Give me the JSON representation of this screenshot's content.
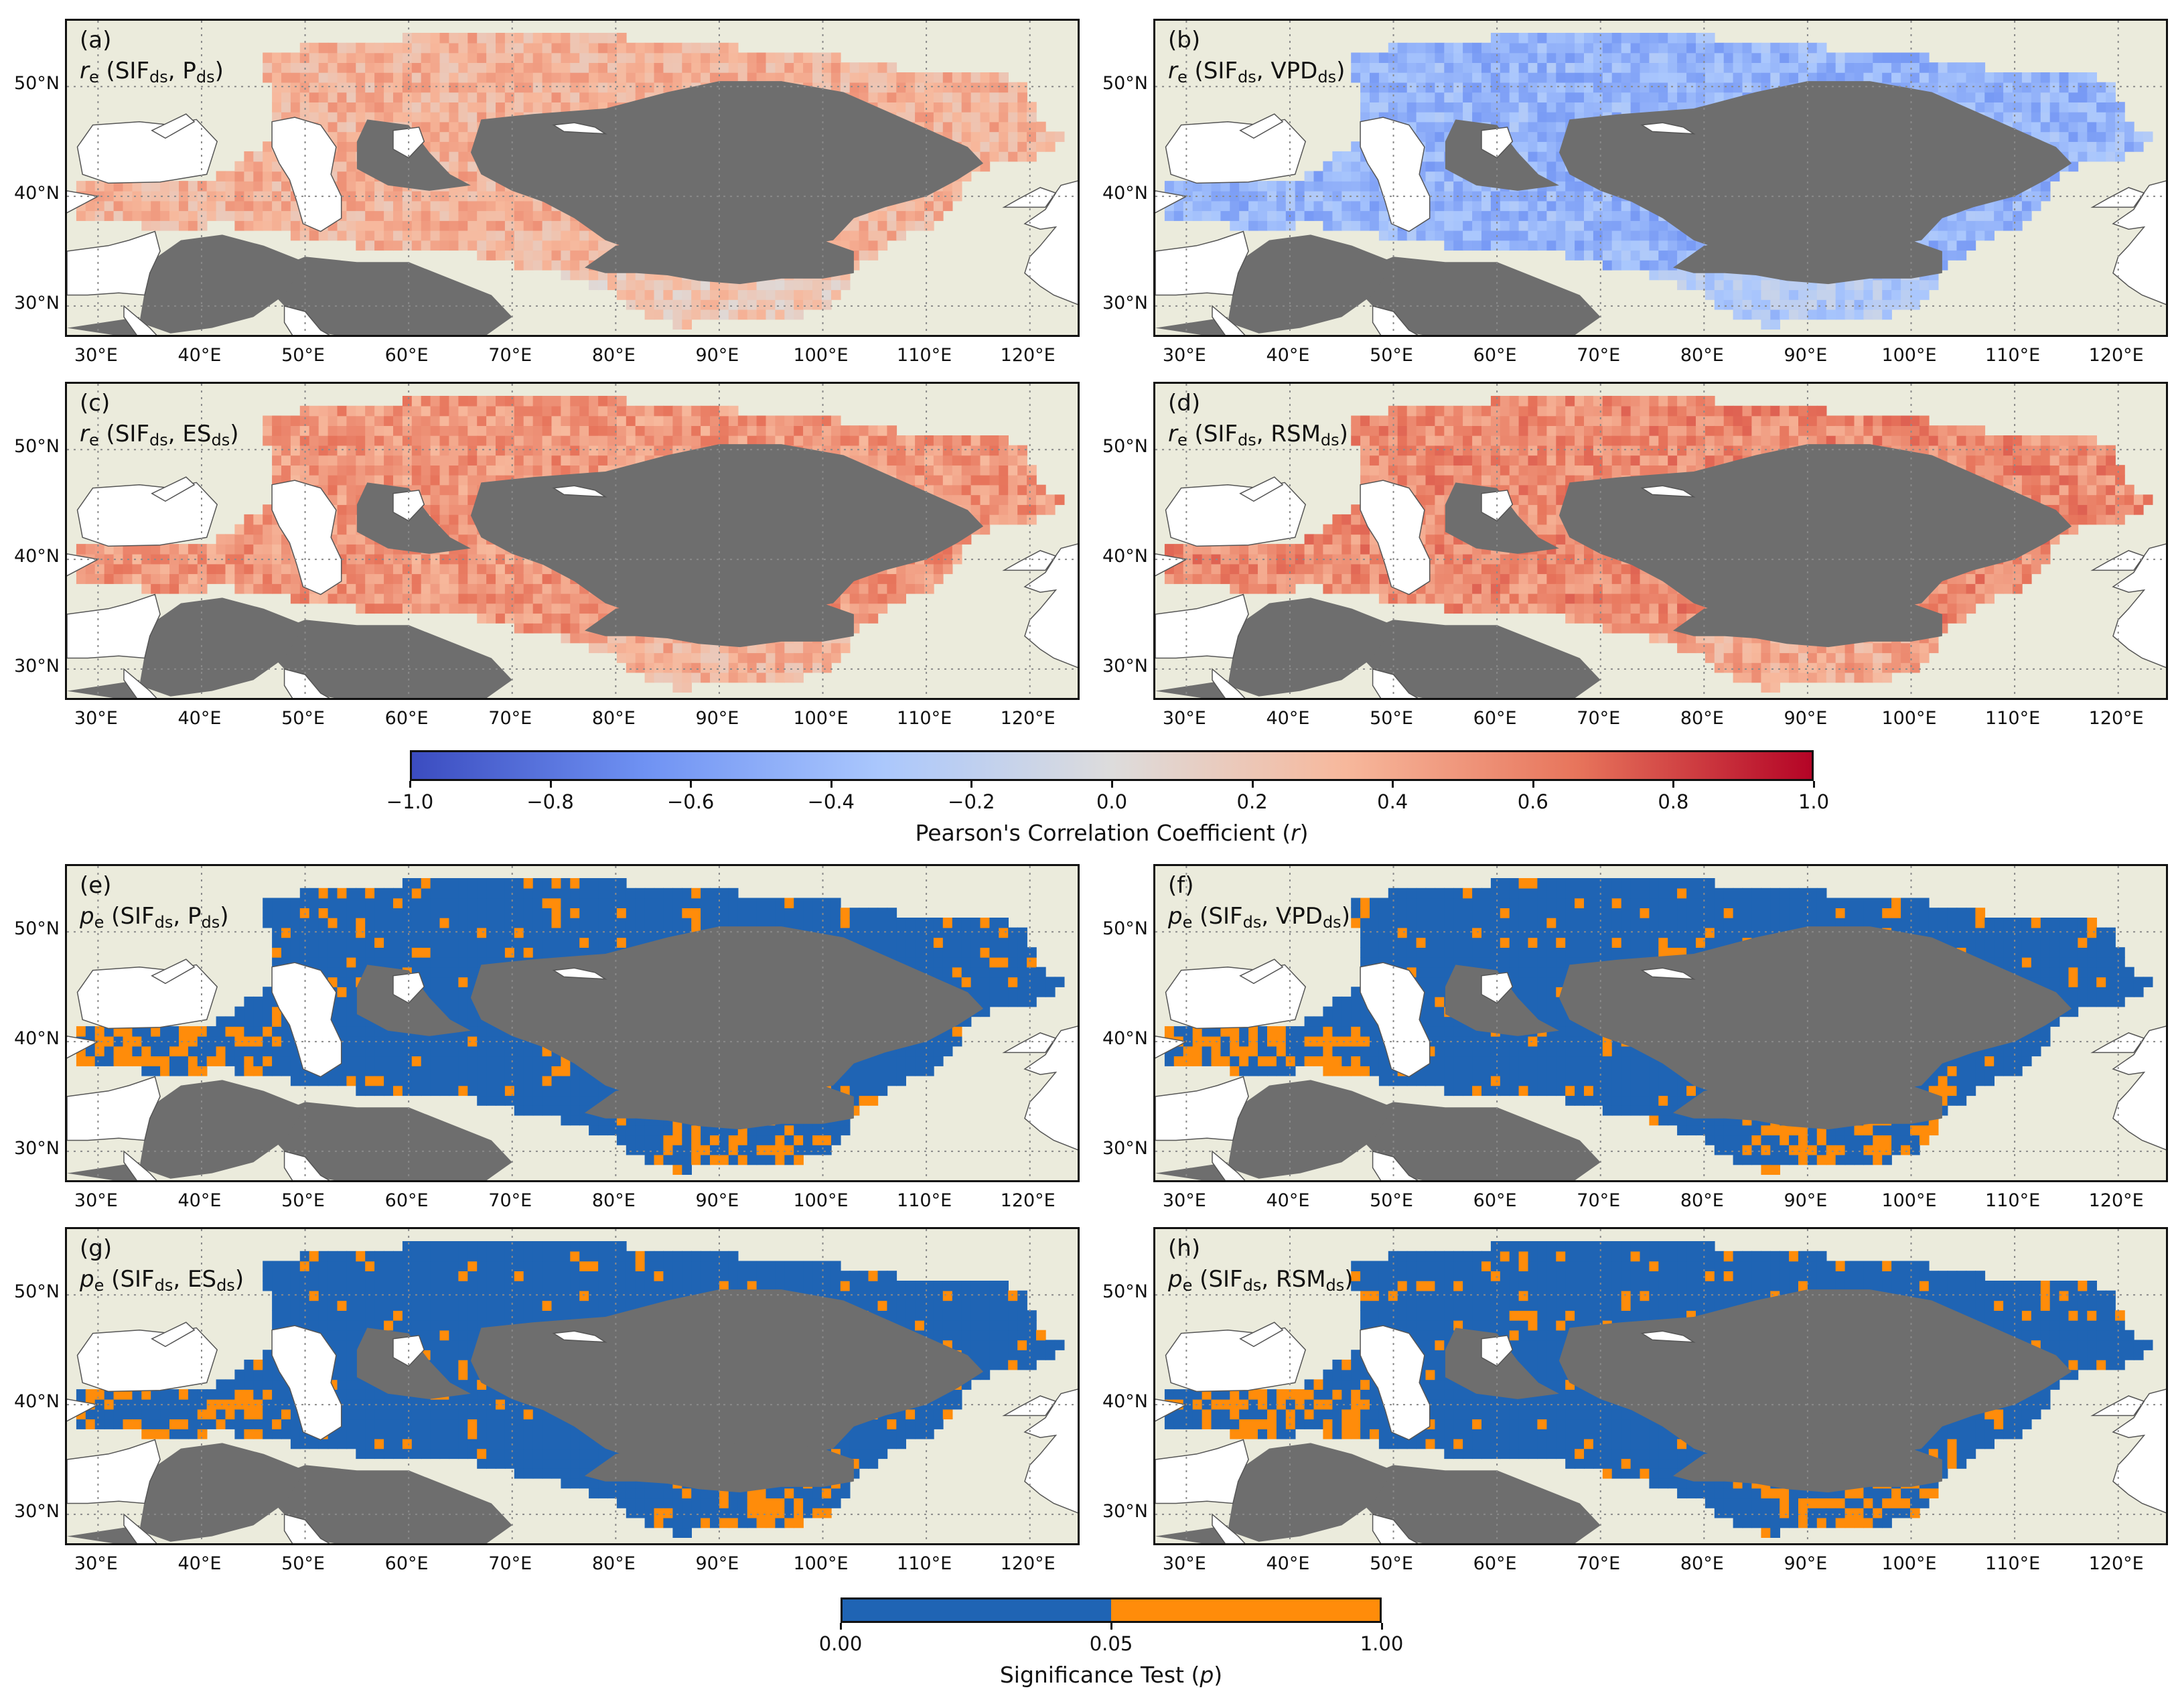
{
  "panels": [
    {
      "tag": "(a)",
      "stat": "r",
      "sub": "e",
      "var1": "SIF",
      "var1_sub": "ds",
      "var2": "P",
      "var2_sub": "ds",
      "kind": "corr",
      "tint": 0.35
    },
    {
      "tag": "(b)",
      "stat": "r",
      "sub": "e",
      "var1": "SIF",
      "var1_sub": "ds",
      "var2": "VPD",
      "var2_sub": "ds",
      "kind": "corr",
      "tint": -0.45
    },
    {
      "tag": "(c)",
      "stat": "r",
      "sub": "e",
      "var1": "SIF",
      "var1_sub": "ds",
      "var2": "ES",
      "var2_sub": "ds",
      "kind": "corr",
      "tint": 0.5
    },
    {
      "tag": "(d)",
      "stat": "r",
      "sub": "e",
      "var1": "SIF",
      "var1_sub": "ds",
      "var2": "RSM",
      "var2_sub": "ds",
      "kind": "corr",
      "tint": 0.55
    },
    {
      "tag": "(e)",
      "stat": "p",
      "sub": "e",
      "var1": "SIF",
      "var1_sub": "ds",
      "var2": "P",
      "var2_sub": "ds",
      "kind": "sig",
      "orange": 0.12
    },
    {
      "tag": "(f)",
      "stat": "p",
      "sub": "e",
      "var1": "SIF",
      "var1_sub": "ds",
      "var2": "VPD",
      "var2_sub": "ds",
      "kind": "sig",
      "orange": 0.14
    },
    {
      "tag": "(g)",
      "stat": "p",
      "sub": "e",
      "var1": "SIF",
      "var1_sub": "ds",
      "var2": "ES",
      "var2_sub": "ds",
      "kind": "sig",
      "orange": 0.12
    },
    {
      "tag": "(h)",
      "stat": "p",
      "sub": "e",
      "var1": "SIF",
      "var1_sub": "ds",
      "var2": "RSM",
      "var2_sub": "ds",
      "kind": "sig",
      "orange": 0.16
    }
  ],
  "axes": {
    "lat_ticks": [
      30,
      40,
      50
    ],
    "lat_labels": [
      "30°N",
      "40°N",
      "50°N"
    ],
    "lon_ticks": [
      30,
      40,
      50,
      60,
      70,
      80,
      90,
      100,
      110,
      120
    ],
    "lon_labels": [
      "30°E",
      "40°E",
      "50°E",
      "60°E",
      "70°E",
      "80°E",
      "90°E",
      "100°E",
      "110°E",
      "120°E"
    ],
    "lon_range": [
      27,
      125
    ],
    "lat_range": [
      27,
      56
    ]
  },
  "colorbar_corr": {
    "title_prefix": "Pearson's Correlation Coefficient (",
    "title_var": "r",
    "title_suffix": ")",
    "range": [
      -1.0,
      1.0
    ],
    "ticks": [
      -1.0,
      -0.8,
      -0.6,
      -0.4,
      -0.2,
      0.0,
      0.2,
      0.4,
      0.6,
      0.8,
      1.0
    ],
    "tick_labels": [
      "−1.0",
      "−0.8",
      "−0.6",
      "−0.4",
      "−0.2",
      "0.0",
      "0.2",
      "0.4",
      "0.6",
      "0.8",
      "1.0"
    ],
    "colors": [
      "#3b4cc0",
      "#6f92f3",
      "#aac7fd",
      "#dddcdc",
      "#f7b89c",
      "#e7745b",
      "#b40426"
    ]
  },
  "colorbar_sig": {
    "title_prefix": "Significance Test (",
    "title_var": "p",
    "title_suffix": ")",
    "tick_labels": [
      "0.00",
      "0.05",
      "1.00"
    ],
    "colors": [
      "#1f64b4",
      "#ff8c0a"
    ]
  },
  "colors": {
    "land": "#ebebdc",
    "plateau": "#6e6e6e",
    "water": "#ffffff",
    "grid": "#8a8a8a"
  }
}
